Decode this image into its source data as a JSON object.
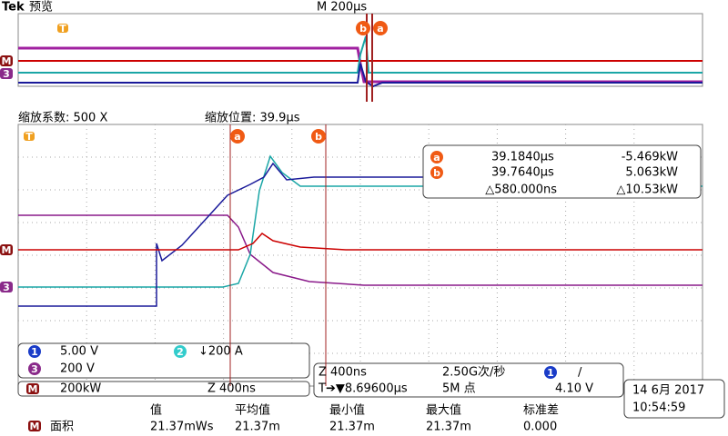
{
  "header": {
    "brand": "Tek",
    "mode": "预览",
    "timebase": "M 200µs"
  },
  "markers": {
    "trigger": "T",
    "cursor_a": "a",
    "cursor_b": "b",
    "math": "M",
    "ch3": "3"
  },
  "zoom": {
    "factor": "缩放系数: 500 X",
    "position": "缩放位置: 39.9µs"
  },
  "cursor_readout": {
    "a": {
      "time": "39.1840µs",
      "value": "-5.469kW"
    },
    "b": {
      "time": "39.7640µs",
      "value": "5.063kW"
    },
    "delta": {
      "time": "△580.000ns",
      "value": "△10.53kW"
    }
  },
  "channels": [
    {
      "id": "1",
      "scale": "5.00 V"
    },
    {
      "id": "2",
      "scale": "↓200 A"
    },
    {
      "id": "3",
      "scale": "200 V"
    },
    {
      "id": "M",
      "scale": "200kW",
      "zoom": "Z 400ns"
    }
  ],
  "acquisition": {
    "zoom": "Z 400ns",
    "rate": "2.50G次/秒",
    "trigger_source": "1",
    "slope": "∕",
    "trigger_pos": "T➔▼8.69600µs",
    "points": "5M 点",
    "level": "4.10 V"
  },
  "datetime": {
    "date": "14 6月  2017",
    "time": "10:54:59"
  },
  "measurement": {
    "headers": [
      "值",
      "平均值",
      "最小值",
      "最大值",
      "标准差"
    ],
    "source": "M",
    "name": "面积",
    "values": [
      "21.37mWs",
      "21.37m",
      "21.37m",
      "21.37m",
      "0.000"
    ]
  }
}
